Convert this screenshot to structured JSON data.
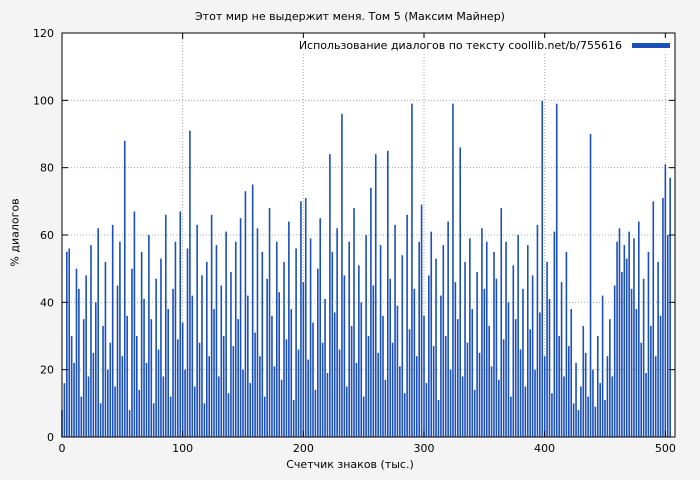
{
  "colors": {
    "bar": "#1b50b8",
    "background": "#f4f4f4",
    "plot_background": "#ffffff",
    "grid": "#a8a8a8",
    "axis": "#000000"
  },
  "chart_data": {
    "type": "bar",
    "title": "Этот мир не выдержит меня. Том 5 (Максим Майнер)",
    "legend_label": "Использование диалогов по тексту coollib.net/b/755616",
    "xlabel": "Счетчик знаков (тыс.)",
    "ylabel": "% диалогов",
    "xlim": [
      0,
      508
    ],
    "ylim": [
      0,
      120
    ],
    "x_ticks": [
      0,
      100,
      200,
      300,
      400,
      500
    ],
    "y_ticks": [
      0,
      20,
      40,
      60,
      80,
      100,
      120
    ],
    "grid": true,
    "legend_position": "top-right",
    "x_start": 0,
    "x_step": 2,
    "values": [
      8,
      16,
      55,
      56,
      30,
      22,
      50,
      44,
      12,
      35,
      48,
      18,
      57,
      25,
      40,
      62,
      10,
      33,
      52,
      20,
      28,
      63,
      15,
      45,
      58,
      24,
      88,
      36,
      8,
      50,
      67,
      30,
      14,
      55,
      41,
      22,
      60,
      35,
      10,
      47,
      26,
      53,
      18,
      66,
      38,
      12,
      44,
      58,
      29,
      67,
      34,
      20,
      56,
      91,
      42,
      15,
      63,
      28,
      48,
      10,
      52,
      24,
      66,
      38,
      57,
      18,
      45,
      30,
      61,
      13,
      49,
      27,
      58,
      35,
      65,
      20,
      73,
      42,
      16,
      75,
      31,
      62,
      24,
      55,
      12,
      47,
      68,
      36,
      21,
      58,
      43,
      17,
      52,
      29,
      64,
      38,
      11,
      56,
      26,
      70,
      46,
      71,
      23,
      59,
      34,
      14,
      50,
      65,
      28,
      41,
      19,
      84,
      55,
      37,
      62,
      26,
      96,
      48,
      15,
      58,
      33,
      68,
      22,
      51,
      40,
      12,
      60,
      30,
      74,
      45,
      84,
      25,
      57,
      36,
      17,
      85,
      47,
      28,
      63,
      39,
      21,
      54,
      13,
      66,
      32,
      99,
      44,
      24,
      58,
      69,
      36,
      16,
      48,
      61,
      27,
      53,
      11,
      42,
      57,
      30,
      64,
      20,
      99,
      46,
      35,
      86,
      18,
      52,
      28,
      59,
      38,
      14,
      49,
      25,
      62,
      44,
      58,
      33,
      21,
      55,
      47,
      17,
      68,
      29,
      58,
      40,
      12,
      51,
      35,
      60,
      26,
      44,
      15,
      57,
      32,
      48,
      20,
      63,
      37,
      99.8,
      24,
      52,
      41,
      13,
      61,
      99,
      30,
      46,
      18,
      55,
      27,
      38,
      10,
      22,
      8,
      15,
      33,
      25,
      12,
      90,
      20,
      9,
      30,
      16,
      42,
      11,
      24,
      35,
      18,
      45,
      58,
      62,
      49,
      57,
      53,
      61,
      44,
      59,
      38,
      64,
      28,
      47,
      19,
      55,
      33,
      70,
      24,
      52,
      36,
      71,
      81,
      60,
      77
    ]
  }
}
